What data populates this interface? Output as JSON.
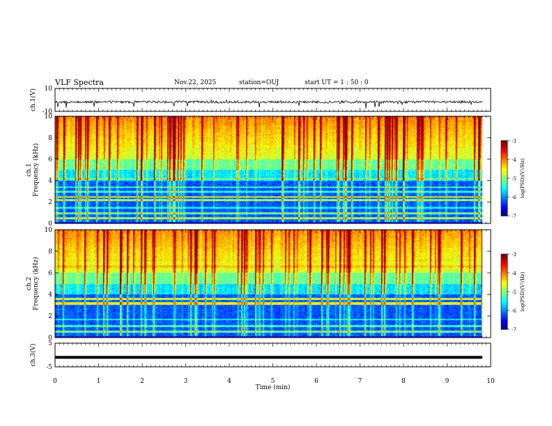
{
  "header": {
    "title": "VLF Spectra",
    "date": "Nov.22, 2025",
    "station": "station=OUJ",
    "start_ut": "start UT = 1 : 50 : 0"
  },
  "chart_data": [
    {
      "type": "line",
      "panel": "ch1-waveform",
      "ylabel": "ch.1(V)",
      "ylim": [
        -10,
        10
      ],
      "y_ticks": [
        "10",
        "-10"
      ],
      "xlim": [
        0,
        10
      ],
      "baseline": 0
    },
    {
      "type": "heatmap",
      "panel": "ch1-spectrogram",
      "ylabel_top": "ch.1",
      "ylabel": "Frequency (kHz)",
      "ylim": [
        0,
        10
      ],
      "y_ticks": [
        "0",
        "2",
        "4",
        "6",
        "8",
        "10"
      ],
      "xlim": [
        0,
        10
      ],
      "colorbar": {
        "label": "log(PSD)(V²/Hz)",
        "range": [
          -7,
          -3
        ],
        "ticks": [
          "-3",
          "-4",
          "-5",
          "-6",
          "-7"
        ]
      }
    },
    {
      "type": "heatmap",
      "panel": "ch2-spectrogram",
      "ylabel_top": "ch.2",
      "ylabel": "Frequency (kHz)",
      "ylim": [
        0,
        10
      ],
      "y_ticks": [
        "0",
        "2",
        "4",
        "6",
        "8",
        "10"
      ],
      "xlim": [
        0,
        10
      ],
      "colorbar": {
        "label": "log(PSD)(V²/Hz)",
        "range": [
          -7,
          -3
        ],
        "ticks": [
          "-3",
          "-4",
          "-5",
          "-6",
          "-7"
        ]
      }
    },
    {
      "type": "line",
      "panel": "ch3-waveform",
      "ylabel": "ch.3(V)",
      "ylim": [
        -5,
        5
      ],
      "y_ticks": [
        "5",
        "-5"
      ],
      "xlim": [
        0,
        10
      ],
      "baseline": -1
    }
  ],
  "x_axis": {
    "label": "Time (min)",
    "ticks": [
      "0",
      "1",
      "2",
      "3",
      "4",
      "5",
      "6",
      "7",
      "8",
      "9",
      "10"
    ],
    "data_end": 9.8
  },
  "colors": {
    "colormap": [
      "#00007f",
      "#0000ff",
      "#007fff",
      "#00ffff",
      "#7fff7f",
      "#ffff00",
      "#ff7f00",
      "#ff0000",
      "#7f0000"
    ]
  }
}
